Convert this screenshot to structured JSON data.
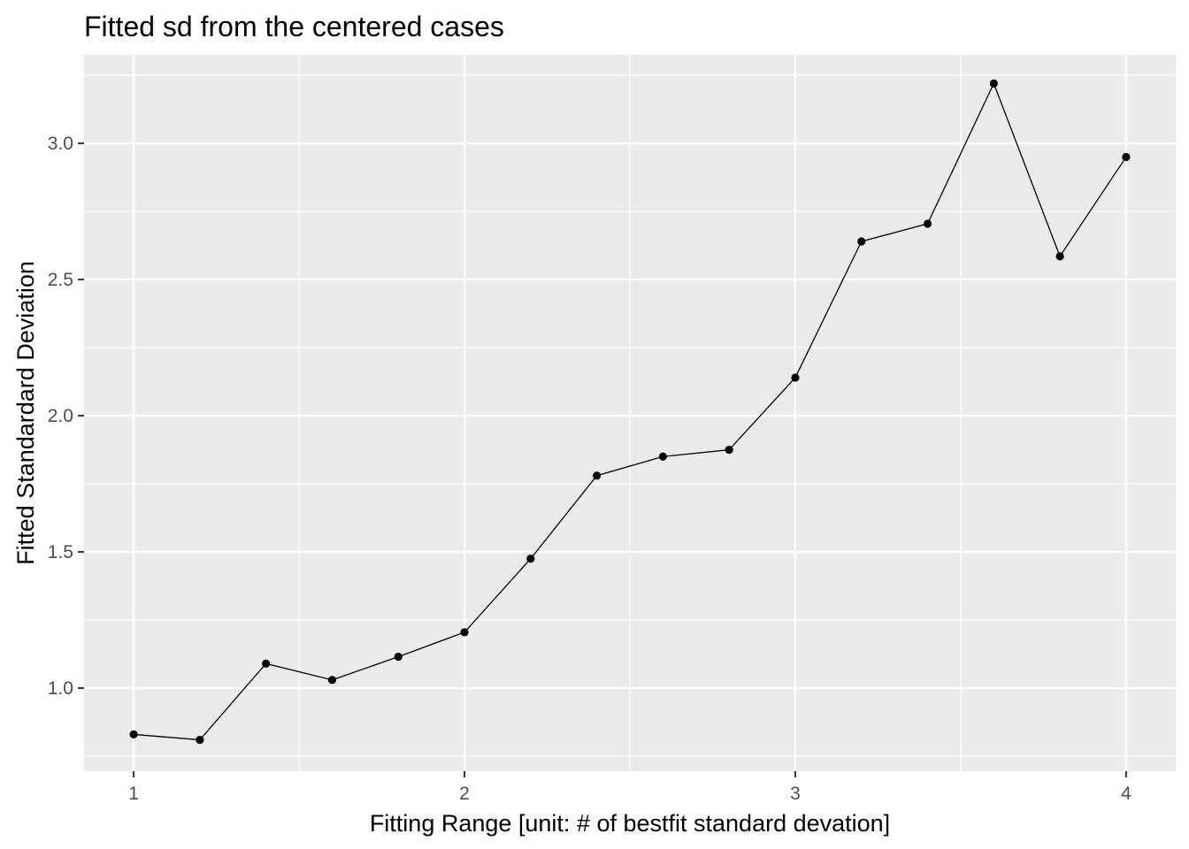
{
  "chart_data": {
    "type": "line",
    "title": "Fitted sd from the centered cases",
    "xlabel": "Fitting Range [unit: # of bestfit standard devation]",
    "ylabel": "Fitted Standardard Deviation",
    "xlim": [
      0.85,
      4.15
    ],
    "ylim": [
      0.695,
      3.325
    ],
    "x_ticks": [
      1,
      2,
      3,
      4
    ],
    "x_tick_labels": [
      "1",
      "2",
      "3",
      "4"
    ],
    "x_minor_ticks": [
      1.5,
      2.5,
      3.5
    ],
    "y_ticks": [
      1.0,
      1.5,
      2.0,
      2.5,
      3.0
    ],
    "y_tick_labels": [
      "1.0",
      "1.5",
      "2.0",
      "2.5",
      "3.0"
    ],
    "y_minor_ticks": [
      0.75,
      1.25,
      1.75,
      2.25,
      2.75,
      3.25
    ],
    "grid": true,
    "panel_background": "#ebebeb",
    "grid_color": "#ffffff",
    "line_color": "#000000",
    "point_color": "#000000",
    "series": [
      {
        "x": [
          1.0,
          1.2,
          1.4,
          1.6,
          1.8,
          2.0,
          2.2,
          2.4,
          2.6,
          2.8,
          3.0,
          3.2,
          3.4,
          3.6,
          3.8,
          4.0
        ],
        "y": [
          0.83,
          0.81,
          1.09,
          1.03,
          1.115,
          1.205,
          1.475,
          1.78,
          1.85,
          1.875,
          2.14,
          2.64,
          2.705,
          3.22,
          2.585,
          2.95
        ]
      }
    ]
  }
}
